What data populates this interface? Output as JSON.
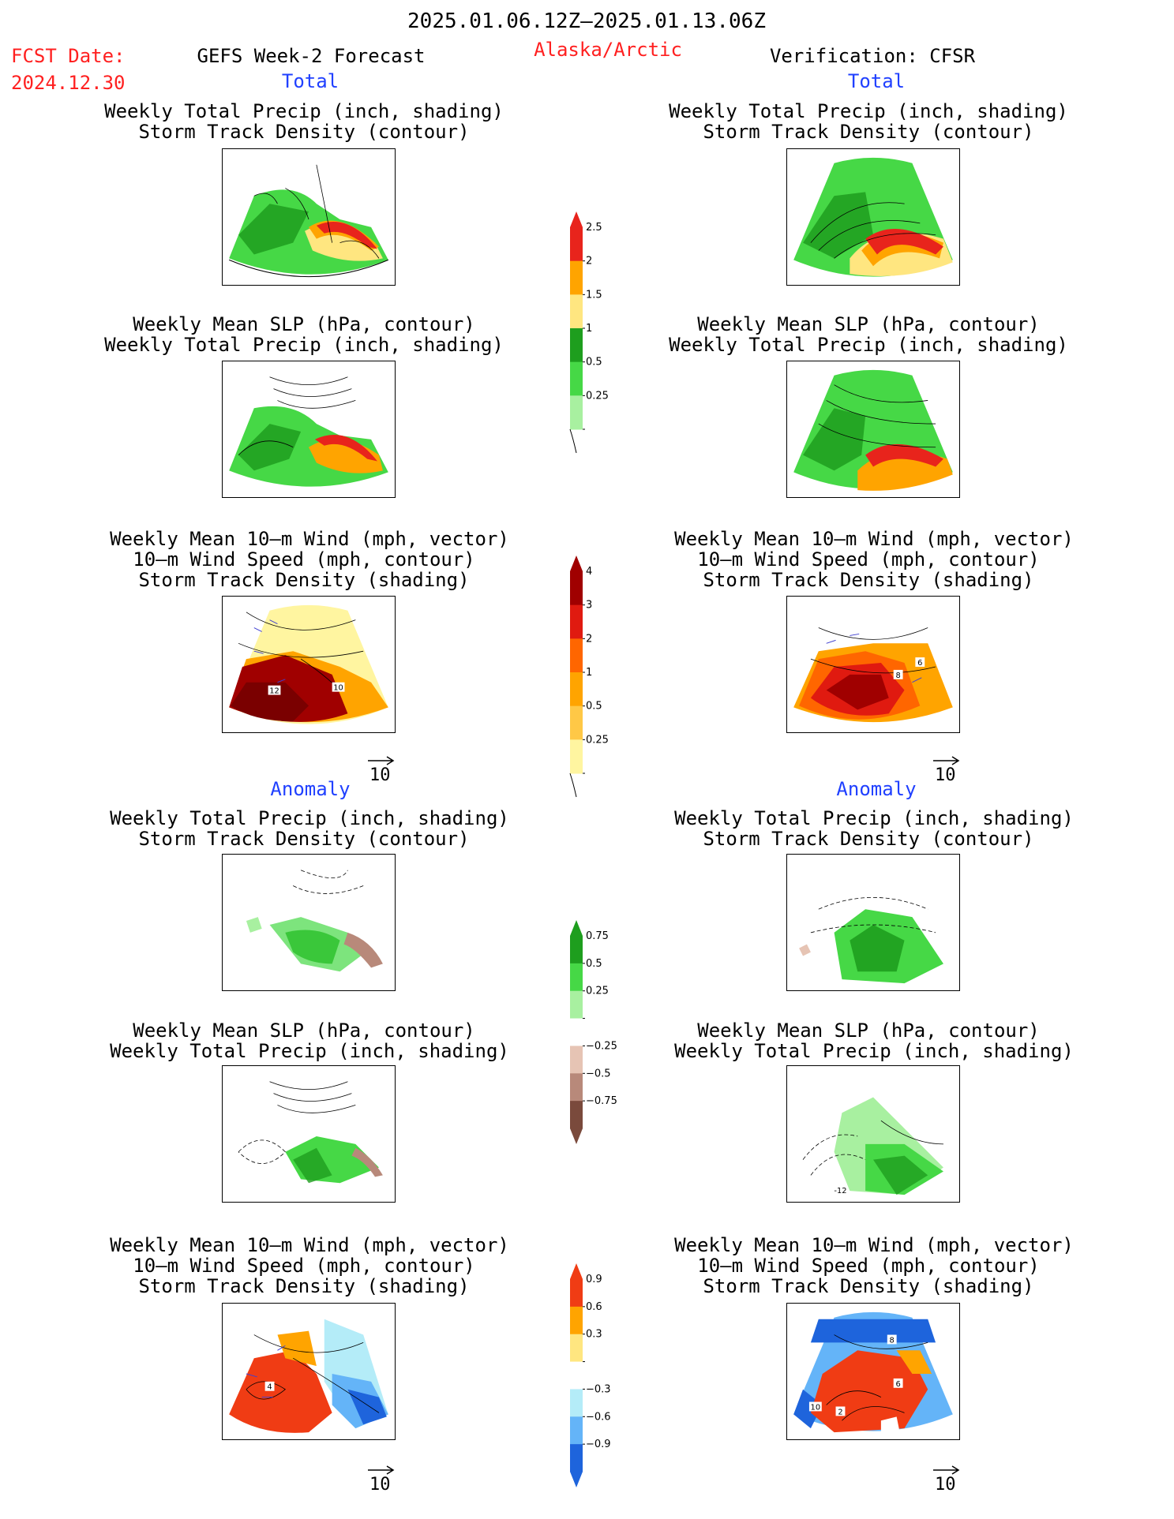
{
  "header": {
    "date_range": "2025.01.06.12Z—2025.01.13.06Z",
    "fcst_label": "FCST Date:",
    "fcst_date": "2024.12.30",
    "forecast_title": "GEFS Week-2 Forecast",
    "region": "Alaska/Arctic",
    "verification": "Verification: CFSR"
  },
  "sections": {
    "total": "Total",
    "anomaly": "Anomaly"
  },
  "panel_titles": {
    "precip_storm": [
      "Weekly Total Precip (inch, shading)",
      "Storm Track Density (contour)"
    ],
    "slp_precip": [
      "Weekly Mean SLP (hPa, contour)",
      "Weekly Total Precip (inch, shading)"
    ],
    "wind_storm": [
      "Weekly Mean 10—m Wind (mph, vector)",
      "10—m Wind Speed (mph, contour)",
      "Storm Track Density (shading)"
    ]
  },
  "vector_reference": "10",
  "contour_labels": {
    "fcst_total_wind": [
      "12",
      "10"
    ],
    "ver_total_wind": [
      "8",
      "6"
    ],
    "ver_anom_slp": [
      "-12"
    ],
    "fcst_anom_wind": [
      "4"
    ],
    "ver_anom_wind": [
      "10",
      "2",
      "6",
      "8"
    ]
  },
  "colorbars": {
    "precip_total": {
      "labels": [
        "2.5",
        "2",
        "1.5",
        "1",
        "0.5",
        "0.25"
      ],
      "colors": [
        "#e8241c",
        "#ffa400",
        "#ffe680",
        "#1e9e1e",
        "#46d846",
        "#a8f0a0"
      ]
    },
    "storm_total": {
      "labels": [
        "4",
        "3",
        "2",
        "1",
        "0.5",
        "0.25"
      ],
      "colors": [
        "#a00000",
        "#e01a10",
        "#ff6600",
        "#ffa400",
        "#ffc846",
        "#fff5a0"
      ]
    },
    "precip_anom": {
      "labels": [
        "0.75",
        "0.5",
        "0.25",
        "−0.25",
        "−0.5",
        "−0.75"
      ],
      "colors": [
        "#1e9e1e",
        "#46d846",
        "#a8f0a0",
        "#ffffff",
        "#e6c4b4",
        "#b8897a",
        "#7a4a3c"
      ]
    },
    "storm_anom": {
      "labels": [
        "0.9",
        "0.6",
        "0.3",
        "−0.3",
        "−0.6",
        "−0.9"
      ],
      "colors": [
        "#f03c14",
        "#ffa400",
        "#ffe680",
        "#ffffff",
        "#b4ecf8",
        "#64b4f8",
        "#1e64dc"
      ]
    }
  }
}
